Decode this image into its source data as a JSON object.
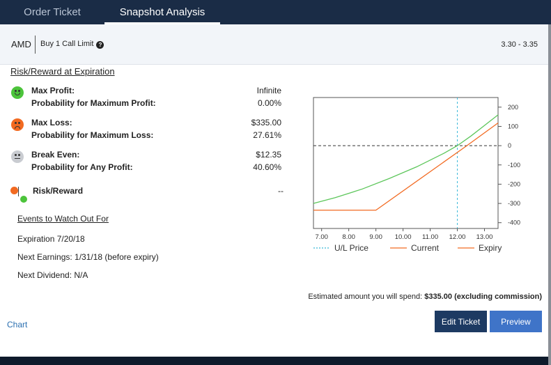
{
  "tabs": [
    {
      "label": "Order Ticket",
      "active": false
    },
    {
      "label": "Snapshot Analysis",
      "active": true
    }
  ],
  "header": {
    "symbol": "AMD",
    "order_desc": "Buy 1 Call Limit",
    "price_range": "3.30 - 3.35"
  },
  "risk_reward": {
    "title": "Risk/Reward at Expiration",
    "max_profit_label": "Max Profit:",
    "max_profit_value": "Infinite",
    "prob_max_profit_label": "Probability for Maximum Profit:",
    "prob_max_profit_value": "0.00%",
    "max_loss_label": "Max Loss:",
    "max_loss_value": "$335.00",
    "prob_max_loss_label": "Probability for Maximum Loss:",
    "prob_max_loss_value": "27.61%",
    "break_even_label": "Break Even:",
    "break_even_value": "$12.35",
    "prob_any_profit_label": "Probability for Any Profit:",
    "prob_any_profit_value": "40.60%",
    "rr_label": "Risk/Reward",
    "rr_value": "--"
  },
  "events": {
    "title": "Events to Watch Out For",
    "expiration": "Expiration 7/20/18",
    "next_earnings": "Next Earnings: 1/31/18 (before expiry)",
    "next_dividend": "Next Dividend: N/A"
  },
  "footer": {
    "estimate_prefix": "Estimated amount you will spend:",
    "estimate_amount": "$335.00 (excluding commission)",
    "chart_link": "Chart",
    "edit_button": "Edit Ticket",
    "preview_button": "Preview"
  },
  "chart_data": {
    "type": "line",
    "x_ticks": [
      "7.00",
      "8.00",
      "9.00",
      "10.00",
      "11.00",
      "12.00",
      "13.00"
    ],
    "y_ticks": [
      "200",
      "100",
      "0",
      "-100",
      "-200",
      "-300",
      "-400"
    ],
    "xlim": [
      6.7,
      13.5
    ],
    "ylim": [
      -430,
      250
    ],
    "ul_price": 12.0,
    "zero_line": 0,
    "series": [
      {
        "name": "Current",
        "color": "#5cc65a",
        "x": [
          6.7,
          7.5,
          8.5,
          9.5,
          10.5,
          11.5,
          12.0,
          12.5,
          13.0,
          13.5
        ],
        "y": [
          -300,
          -270,
          -225,
          -170,
          -110,
          -40,
          0,
          50,
          105,
          160
        ]
      },
      {
        "name": "Expiry",
        "color": "#f26a21",
        "x": [
          6.7,
          9.0,
          12.35,
          13.5
        ],
        "y": [
          -335,
          -335,
          0,
          118
        ]
      }
    ],
    "legend": [
      {
        "name": "U/L Price",
        "color": "#38b8d8",
        "style": "dotted"
      },
      {
        "name": "Current",
        "color": "#f26a21",
        "style": "solid"
      },
      {
        "name": "Expiry",
        "color": "#f26a21",
        "style": "solid"
      }
    ]
  }
}
